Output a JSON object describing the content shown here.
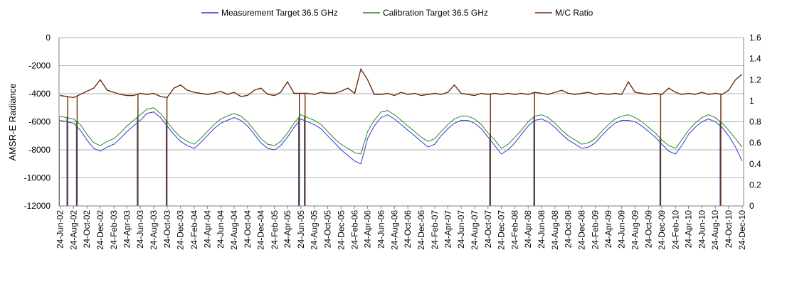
{
  "chart_data": {
    "type": "line",
    "title": "",
    "xlabel": "",
    "ylabel": "AMSR-E Radiance",
    "y2label": "",
    "ylim": [
      -12000,
      0
    ],
    "y2lim": [
      0,
      1.6
    ],
    "yticks": [
      0,
      -2000,
      -4000,
      -6000,
      -8000,
      -10000,
      -12000
    ],
    "y2ticks": [
      1.6,
      1.4,
      1.2,
      1,
      0.8,
      0.6,
      0.4,
      0.2,
      0
    ],
    "xlim": [
      "2002-06-19",
      "2010-12-31"
    ],
    "grid": "horizontal",
    "legend_position": "top",
    "categories": [
      "24-Jun-02",
      "24-Aug-02",
      "24-Oct-02",
      "24-Dec-02",
      "24-Feb-03",
      "24-Apr-03",
      "24-Jun-03",
      "24-Aug-03",
      "24-Oct-03",
      "24-Dec-03",
      "24-Feb-04",
      "24-Apr-04",
      "24-Jun-04",
      "24-Aug-04",
      "24-Oct-04",
      "24-Dec-04",
      "24-Feb-05",
      "24-Apr-05",
      "24-Jun-05",
      "24-Aug-05",
      "24-Oct-05",
      "24-Dec-05",
      "24-Feb-06",
      "24-Apr-06",
      "24-Jun-06",
      "24-Aug-06",
      "24-Oct-06",
      "24-Dec-06",
      "24-Feb-07",
      "24-Apr-07",
      "24-Jun-07",
      "24-Aug-07",
      "24-Oct-07",
      "24-Dec-07",
      "24-Feb-08",
      "24-Apr-08",
      "24-Jun-08",
      "24-Aug-08",
      "24-Oct-08",
      "24-Dec-08",
      "24-Feb-09",
      "24-Apr-09",
      "24-Jun-09",
      "24-Aug-09",
      "24-Oct-09",
      "24-Dec-09",
      "24-Feb-10",
      "24-Apr-10",
      "24-Jun-10",
      "24-Aug-10",
      "24-Oct-10",
      "24-Dec-10"
    ],
    "series": [
      {
        "name": "Measurement Target 36.5 GHz",
        "axis": "left",
        "color": "#3333dd",
        "x": [
          "2002-06-24",
          "2002-07-24",
          "2002-08-24",
          "2002-09-24",
          "2002-10-24",
          "2002-11-24",
          "2002-12-24",
          "2003-01-24",
          "2003-02-24",
          "2003-03-24",
          "2003-04-24",
          "2003-05-24",
          "2003-06-24",
          "2003-07-24",
          "2003-08-24",
          "2003-09-24",
          "2003-10-24",
          "2003-11-24",
          "2003-12-24",
          "2004-01-24",
          "2004-02-24",
          "2004-03-24",
          "2004-04-24",
          "2004-05-24",
          "2004-06-24",
          "2004-07-24",
          "2004-08-24",
          "2004-09-24",
          "2004-10-24",
          "2004-11-24",
          "2004-12-24",
          "2005-01-24",
          "2005-02-24",
          "2005-03-24",
          "2005-04-24",
          "2005-05-24",
          "2005-06-24",
          "2005-07-24",
          "2005-08-24",
          "2005-09-24",
          "2005-10-24",
          "2005-11-24",
          "2005-12-24",
          "2006-01-24",
          "2006-02-24",
          "2006-03-24",
          "2006-04-24",
          "2006-05-24",
          "2006-06-24",
          "2006-07-24",
          "2006-08-24",
          "2006-09-24",
          "2006-10-24",
          "2006-11-24",
          "2006-12-24",
          "2007-01-24",
          "2007-02-24",
          "2007-03-24",
          "2007-04-24",
          "2007-05-24",
          "2007-06-24",
          "2007-07-24",
          "2007-08-24",
          "2007-09-24",
          "2007-10-24",
          "2007-11-24",
          "2007-12-24",
          "2008-01-24",
          "2008-02-24",
          "2008-03-24",
          "2008-04-24",
          "2008-05-24",
          "2008-06-24",
          "2008-07-24",
          "2008-08-24",
          "2008-09-24",
          "2008-10-24",
          "2008-11-24",
          "2008-12-24",
          "2009-01-24",
          "2009-02-24",
          "2009-03-24",
          "2009-04-24",
          "2009-05-24",
          "2009-06-24",
          "2009-07-24",
          "2009-08-24",
          "2009-09-24",
          "2009-10-24",
          "2009-11-24",
          "2009-12-24",
          "2010-01-24",
          "2010-02-24",
          "2010-03-24",
          "2010-04-24",
          "2010-05-24",
          "2010-06-24",
          "2010-07-24",
          "2010-08-24",
          "2010-09-24",
          "2010-10-24",
          "2010-11-24",
          "2010-12-24"
        ],
        "y": [
          -5900,
          -6000,
          -6100,
          -6600,
          -7300,
          -7900,
          -8100,
          -7800,
          -7600,
          -7200,
          -6700,
          -6300,
          -5900,
          -5400,
          -5300,
          -5700,
          -6300,
          -6900,
          -7400,
          -7700,
          -7900,
          -7500,
          -7000,
          -6500,
          -6100,
          -5900,
          -5700,
          -5900,
          -6300,
          -6900,
          -7500,
          -7900,
          -8000,
          -7700,
          -7100,
          -6400,
          -5800,
          -6000,
          -6200,
          -6500,
          -7000,
          -7500,
          -8000,
          -8400,
          -8800,
          -9000,
          -7200,
          -6300,
          -5700,
          -5500,
          -5800,
          -6200,
          -6600,
          -7000,
          -7400,
          -7800,
          -7600,
          -7000,
          -6500,
          -6100,
          -5900,
          -5900,
          -6100,
          -6500,
          -7100,
          -7700,
          -8300,
          -8000,
          -7500,
          -6900,
          -6300,
          -5900,
          -5800,
          -6000,
          -6400,
          -6900,
          -7300,
          -7600,
          -7900,
          -7800,
          -7500,
          -7000,
          -6500,
          -6100,
          -5900,
          -5900,
          -6000,
          -6300,
          -6700,
          -7100,
          -7600,
          -8100,
          -8300,
          -7700,
          -6900,
          -6400,
          -6000,
          -5800,
          -6000,
          -6400,
          -7000,
          -7800,
          -8800
        ]
      },
      {
        "name": "Calibration Target 36.5 GHz",
        "axis": "left",
        "color": "#228b22",
        "x": [
          "2002-06-24",
          "2002-07-24",
          "2002-08-24",
          "2002-09-24",
          "2002-10-24",
          "2002-11-24",
          "2002-12-24",
          "2003-01-24",
          "2003-02-24",
          "2003-03-24",
          "2003-04-24",
          "2003-05-24",
          "2003-06-24",
          "2003-07-24",
          "2003-08-24",
          "2003-09-24",
          "2003-10-24",
          "2003-11-24",
          "2003-12-24",
          "2004-01-24",
          "2004-02-24",
          "2004-03-24",
          "2004-04-24",
          "2004-05-24",
          "2004-06-24",
          "2004-07-24",
          "2004-08-24",
          "2004-09-24",
          "2004-10-24",
          "2004-11-24",
          "2004-12-24",
          "2005-01-24",
          "2005-02-24",
          "2005-03-24",
          "2005-04-24",
          "2005-05-24",
          "2005-06-24",
          "2005-07-24",
          "2005-08-24",
          "2005-09-24",
          "2005-10-24",
          "2005-11-24",
          "2005-12-24",
          "2006-01-24",
          "2006-02-24",
          "2006-03-24",
          "2006-04-24",
          "2006-05-24",
          "2006-06-24",
          "2006-07-24",
          "2006-08-24",
          "2006-09-24",
          "2006-10-24",
          "2006-11-24",
          "2006-12-24",
          "2007-01-24",
          "2007-02-24",
          "2007-03-24",
          "2007-04-24",
          "2007-05-24",
          "2007-06-24",
          "2007-07-24",
          "2007-08-24",
          "2007-09-24",
          "2007-10-24",
          "2007-11-24",
          "2007-12-24",
          "2008-01-24",
          "2008-02-24",
          "2008-03-24",
          "2008-04-24",
          "2008-05-24",
          "2008-06-24",
          "2008-07-24",
          "2008-08-24",
          "2008-09-24",
          "2008-10-24",
          "2008-11-24",
          "2008-12-24",
          "2009-01-24",
          "2009-02-24",
          "2009-03-24",
          "2009-04-24",
          "2009-05-24",
          "2009-06-24",
          "2009-07-24",
          "2009-08-24",
          "2009-09-24",
          "2009-10-24",
          "2009-11-24",
          "2009-12-24",
          "2010-01-24",
          "2010-02-24",
          "2010-03-24",
          "2010-04-24",
          "2010-05-24",
          "2010-06-24",
          "2010-07-24",
          "2010-08-24",
          "2010-09-24",
          "2010-10-24",
          "2010-11-24",
          "2010-12-24"
        ],
        "y": [
          -5600,
          -5700,
          -5800,
          -6200,
          -6900,
          -7500,
          -7700,
          -7400,
          -7200,
          -6800,
          -6300,
          -5900,
          -5500,
          -5100,
          -5000,
          -5400,
          -6000,
          -6600,
          -7100,
          -7400,
          -7600,
          -7200,
          -6700,
          -6200,
          -5800,
          -5600,
          -5400,
          -5600,
          -6000,
          -6600,
          -7200,
          -7600,
          -7700,
          -7400,
          -6800,
          -6100,
          -5500,
          -5700,
          -5900,
          -6200,
          -6700,
          -7200,
          -7600,
          -7900,
          -8200,
          -8300,
          -6700,
          -5900,
          -5300,
          -5200,
          -5500,
          -5900,
          -6300,
          -6700,
          -7100,
          -7400,
          -7200,
          -6700,
          -6200,
          -5800,
          -5600,
          -5600,
          -5800,
          -6200,
          -6800,
          -7300,
          -7900,
          -7600,
          -7100,
          -6600,
          -6000,
          -5600,
          -5500,
          -5700,
          -6100,
          -6600,
          -7000,
          -7300,
          -7600,
          -7500,
          -7200,
          -6700,
          -6200,
          -5800,
          -5600,
          -5500,
          -5700,
          -6000,
          -6400,
          -6800,
          -7300,
          -7700,
          -7900,
          -7300,
          -6600,
          -6100,
          -5700,
          -5500,
          -5700,
          -6100,
          -6600,
          -7200,
          -7800
        ]
      },
      {
        "name": "M/C Ratio",
        "axis": "right",
        "color": "#6b2e0a",
        "x": [
          "2002-06-24",
          "2002-07-24",
          "2002-08-24",
          "2002-09-24",
          "2002-10-24",
          "2002-11-24",
          "2002-12-24",
          "2003-01-24",
          "2003-02-24",
          "2003-03-24",
          "2003-04-24",
          "2003-05-24",
          "2003-06-24",
          "2003-07-24",
          "2003-08-24",
          "2003-09-24",
          "2003-10-24",
          "2003-11-24",
          "2003-12-24",
          "2004-01-24",
          "2004-02-24",
          "2004-03-24",
          "2004-04-24",
          "2004-05-24",
          "2004-06-24",
          "2004-07-24",
          "2004-08-24",
          "2004-09-24",
          "2004-10-24",
          "2004-11-24",
          "2004-12-24",
          "2005-01-24",
          "2005-02-24",
          "2005-03-24",
          "2005-04-24",
          "2005-05-24",
          "2005-06-24",
          "2005-07-24",
          "2005-08-24",
          "2005-09-24",
          "2005-10-24",
          "2005-11-24",
          "2005-12-24",
          "2006-01-24",
          "2006-02-24",
          "2006-03-24",
          "2006-04-24",
          "2006-05-24",
          "2006-06-24",
          "2006-07-24",
          "2006-08-24",
          "2006-09-24",
          "2006-10-24",
          "2006-11-24",
          "2006-12-24",
          "2007-01-24",
          "2007-02-24",
          "2007-03-24",
          "2007-04-24",
          "2007-05-24",
          "2007-06-24",
          "2007-07-24",
          "2007-08-24",
          "2007-09-24",
          "2007-10-24",
          "2007-11-24",
          "2007-12-24",
          "2008-01-24",
          "2008-02-24",
          "2008-03-24",
          "2008-04-24",
          "2008-05-24",
          "2008-06-24",
          "2008-07-24",
          "2008-08-24",
          "2008-09-24",
          "2008-10-24",
          "2008-11-24",
          "2008-12-24",
          "2009-01-24",
          "2009-02-24",
          "2009-03-24",
          "2009-04-24",
          "2009-05-24",
          "2009-06-24",
          "2009-07-24",
          "2009-08-24",
          "2009-09-24",
          "2009-10-24",
          "2009-11-24",
          "2009-12-24",
          "2010-01-24",
          "2010-02-24",
          "2010-03-24",
          "2010-04-24",
          "2010-05-24",
          "2010-06-24",
          "2010-07-24",
          "2010-08-24",
          "2010-09-24",
          "2010-10-24",
          "2010-11-24",
          "2010-12-24"
        ],
        "y": [
          1.05,
          1.04,
          1.03,
          1.06,
          1.09,
          1.12,
          1.2,
          1.1,
          1.08,
          1.06,
          1.05,
          1.05,
          1.07,
          1.06,
          1.07,
          1.04,
          1.03,
          1.12,
          1.15,
          1.1,
          1.08,
          1.07,
          1.06,
          1.07,
          1.09,
          1.06,
          1.08,
          1.04,
          1.05,
          1.1,
          1.12,
          1.06,
          1.05,
          1.08,
          1.18,
          1.07,
          1.07,
          1.07,
          1.06,
          1.08,
          1.07,
          1.07,
          1.09,
          1.12,
          1.07,
          1.3,
          1.2,
          1.06,
          1.06,
          1.07,
          1.05,
          1.08,
          1.06,
          1.07,
          1.05,
          1.06,
          1.07,
          1.06,
          1.08,
          1.15,
          1.07,
          1.06,
          1.05,
          1.07,
          1.06,
          1.07,
          1.06,
          1.07,
          1.06,
          1.07,
          1.06,
          1.08,
          1.07,
          1.06,
          1.08,
          1.1,
          1.07,
          1.06,
          1.07,
          1.08,
          1.06,
          1.07,
          1.06,
          1.07,
          1.06,
          1.18,
          1.08,
          1.07,
          1.06,
          1.07,
          1.06,
          1.12,
          1.08,
          1.06,
          1.07,
          1.06,
          1.08,
          1.06,
          1.07,
          1.06,
          1.1,
          1.2,
          1.25
        ]
      }
    ],
    "spikes": {
      "calibration_drops_to": -12000,
      "measurement_drops_to": -12000,
      "ratio_drops_to": 0,
      "calibration_dates": [
        "2002-06-20",
        "2002-07-25",
        "2002-09-06",
        "2003-06-10",
        "2003-10-20",
        "2005-06-14",
        "2005-07-10",
        "2007-11-01",
        "2008-05-20",
        "2009-12-15",
        "2010-09-15"
      ],
      "ratio_dates": [
        "2002-07-25",
        "2002-09-06",
        "2003-06-10",
        "2003-10-20",
        "2005-06-14",
        "2005-07-10",
        "2007-11-01",
        "2008-05-20",
        "2009-12-15",
        "2010-09-15"
      ]
    }
  }
}
